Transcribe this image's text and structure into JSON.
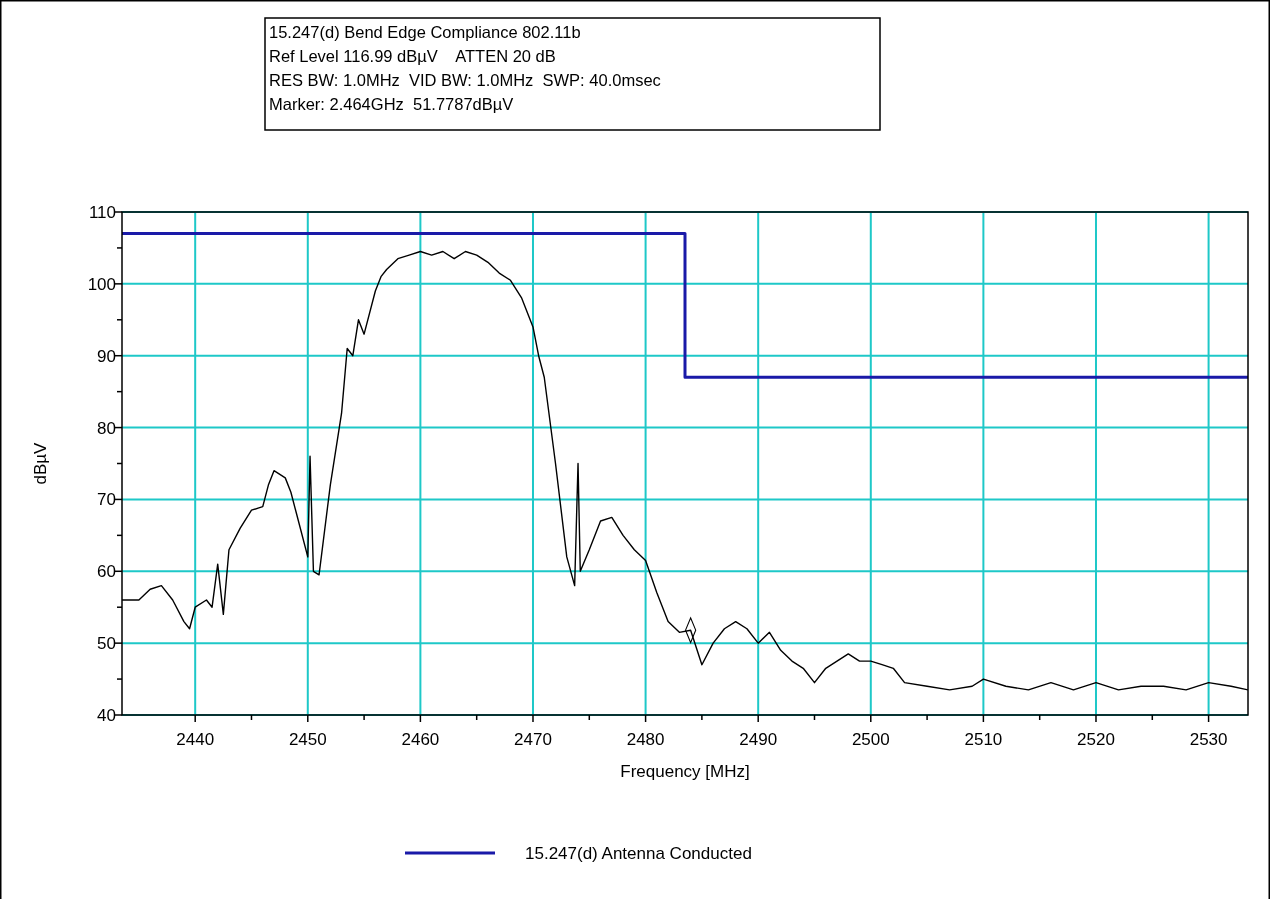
{
  "chart_data": {
    "type": "line",
    "title": "15.247(d) Bend Edge Compliance 802.11b",
    "annotations": [
      "Ref Level 116.99 dBµV    ATTEN 20 dB",
      "RES BW: 1.0MHz  VID BW: 1.0MHz  SWP: 40.0msec",
      "Marker: 2.464GHz  51.7787dBµV"
    ],
    "xlabel": "Frequency [MHz]",
    "ylabel": "dBµV",
    "xlim": [
      2433.5,
      2533.5
    ],
    "ylim": [
      40,
      110
    ],
    "xticks": [
      2440,
      {
        "value": 2445,
        "label": null
      },
      2450,
      {
        "value": 2455,
        "label": null
      },
      2460,
      {
        "value": 2465,
        "label": null
      },
      2470,
      {
        "value": 2475,
        "label": null
      },
      2480,
      {
        "value": 2485,
        "label": null
      },
      2490,
      {
        "value": 2495,
        "label": null
      },
      2500,
      {
        "value": 2505,
        "label": null
      },
      2510,
      {
        "value": 2515,
        "label": null
      },
      2520,
      {
        "value": 2525,
        "label": null
      },
      2530
    ],
    "yticks": [
      40,
      {
        "value": 45,
        "label": null
      },
      50,
      {
        "value": 55,
        "label": null
      },
      60,
      {
        "value": 65,
        "label": null
      },
      70,
      {
        "value": 75,
        "label": null
      },
      80,
      {
        "value": 85,
        "label": null
      },
      90,
      {
        "value": 95,
        "label": null
      },
      100,
      {
        "value": 105,
        "label": null
      },
      110
    ],
    "grid": true,
    "legend": "bottom",
    "series": [
      {
        "color": "#000000",
        "x": [
          2433.5,
          2435,
          2436,
          2437,
          2438,
          2439,
          2439.5,
          2440,
          2441,
          2441.5,
          2442,
          2442.5,
          2443,
          2444,
          2445,
          2446,
          2446.5,
          2447,
          2448,
          2448.5,
          2449,
          2450,
          2450.2,
          2450.5,
          2451,
          2452,
          2453,
          2453.5,
          2454,
          2454.5,
          2455,
          2456,
          2456.5,
          2457,
          2458,
          2459,
          2460,
          2461,
          2462,
          2463,
          2464,
          2465,
          2466,
          2467,
          2468,
          2469,
          2470,
          2470.5,
          2471,
          2472,
          2473,
          2473.7,
          2474,
          2474.2,
          2475,
          2476,
          2477,
          2478,
          2479,
          2480,
          2481,
          2482,
          2483,
          2484,
          2485,
          2486,
          2487,
          2488,
          2489,
          2490,
          2491,
          2492,
          2493,
          2494,
          2495,
          2496,
          2497,
          2498,
          2499,
          2500,
          2501,
          2502,
          2503,
          2505,
          2507,
          2509,
          2510,
          2512,
          2514,
          2516,
          2518,
          2520,
          2522,
          2524,
          2526,
          2528,
          2530,
          2532,
          2533.5
        ],
        "values": [
          56,
          56,
          57.5,
          58,
          56,
          53,
          52,
          55,
          56,
          55,
          61,
          54,
          63,
          66,
          68.5,
          69,
          72,
          74,
          73,
          71,
          68,
          62,
          76,
          60,
          59.5,
          72,
          82,
          91,
          90,
          95,
          93,
          99,
          101,
          102,
          103.5,
          104,
          104.5,
          104,
          104.5,
          103.5,
          104.5,
          104,
          103,
          101.5,
          100.5,
          98,
          94,
          90,
          87,
          75,
          62,
          58,
          75,
          60,
          63,
          67,
          67.5,
          65,
          63,
          61.5,
          57,
          53,
          51.5,
          51.8,
          47,
          50,
          52,
          53,
          52,
          50,
          51.5,
          49,
          47.5,
          46.5,
          44.5,
          46.5,
          47.5,
          48.5,
          47.5,
          47.5,
          47,
          46.5,
          44.5,
          44,
          43.5,
          44,
          45,
          44,
          43.5,
          44.5,
          43.5,
          44.5,
          43.5,
          44,
          44,
          43.5,
          44.5,
          44,
          43.5
        ]
      },
      {
        "type": "step",
        "name": "15.247(d) Antenna Conducted",
        "color": "#1a1aa8",
        "x": [
          2433.5,
          2483.5,
          2533.5
        ],
        "values": [
          107,
          87,
          87
        ]
      },
      {
        "type": "scatter",
        "color": "#000000",
        "marker": "diamond",
        "x": [
          2484
        ],
        "values": [
          51.8
        ]
      }
    ]
  }
}
